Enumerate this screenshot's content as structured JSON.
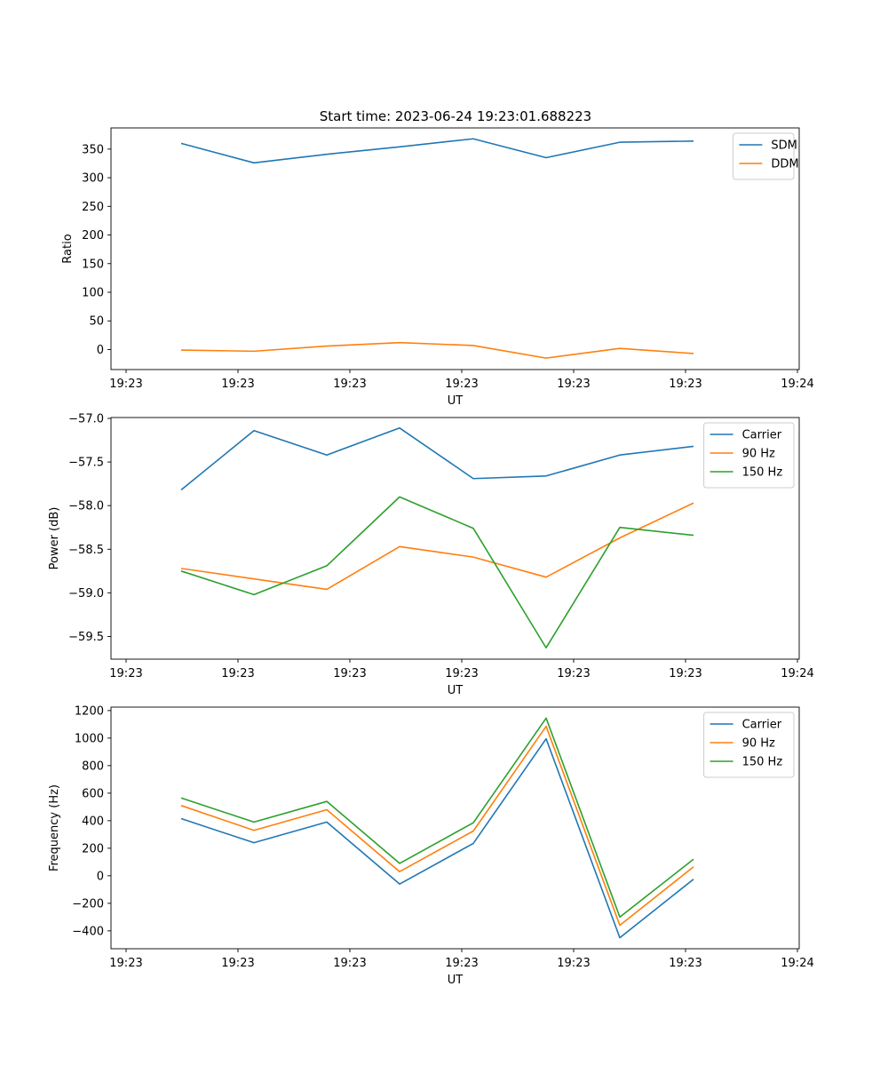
{
  "title": "Start time: 2023-06-24 19:23:01.688223",
  "chart_data": [
    {
      "type": "line",
      "xlabel": "UT",
      "ylabel": "Ratio",
      "x_tick_labels": [
        "19:23",
        "19:23",
        "19:23",
        "19:23",
        "19:23",
        "19:23",
        "19:24"
      ],
      "y_ticks": [
        0,
        50,
        100,
        150,
        200,
        250,
        300,
        350
      ],
      "y_tick_labels": [
        "0",
        "50",
        "100",
        "150",
        "200",
        "250",
        "300",
        "350"
      ],
      "ylim": [
        -35,
        387
      ],
      "legend_position": "top-right",
      "series": [
        {
          "name": "SDM",
          "color": "#1f77b4",
          "values": [
            360,
            326,
            341,
            354,
            368,
            335,
            362,
            364
          ]
        },
        {
          "name": "DDM",
          "color": "#ff7f0e",
          "values": [
            -1,
            -3,
            6,
            12,
            7,
            -15,
            2,
            -7
          ]
        }
      ]
    },
    {
      "type": "line",
      "xlabel": "UT",
      "ylabel": "Power (dB)",
      "x_tick_labels": [
        "19:23",
        "19:23",
        "19:23",
        "19:23",
        "19:23",
        "19:23",
        "19:24"
      ],
      "y_ticks": [
        -57.0,
        -57.5,
        -58.0,
        -58.5,
        -59.0,
        -59.5
      ],
      "y_tick_labels": [
        "−57.0",
        "−57.5",
        "−58.0",
        "−58.5",
        "−59.0",
        "−59.5"
      ],
      "ylim": [
        -59.76,
        -56.99
      ],
      "legend_position": "top-right",
      "series": [
        {
          "name": "Carrier",
          "color": "#1f77b4",
          "values": [
            -57.82,
            -57.14,
            -57.42,
            -57.11,
            -57.69,
            -57.66,
            -57.42,
            -57.32
          ]
        },
        {
          "name": "90 Hz",
          "color": "#ff7f0e",
          "values": [
            -58.72,
            -58.84,
            -58.96,
            -58.47,
            -58.59,
            -58.82,
            -58.37,
            -57.97
          ]
        },
        {
          "name": "150 Hz",
          "color": "#2ca02c",
          "values": [
            -58.75,
            -59.02,
            -58.69,
            -57.9,
            -58.26,
            -59.63,
            -58.25,
            -58.34
          ]
        }
      ]
    },
    {
      "type": "line",
      "xlabel": "UT",
      "ylabel": "Frequency (Hz)",
      "x_tick_labels": [
        "19:23",
        "19:23",
        "19:23",
        "19:23",
        "19:23",
        "19:23",
        "19:24"
      ],
      "y_ticks": [
        -400,
        -200,
        0,
        200,
        400,
        600,
        800,
        1000,
        1200
      ],
      "y_tick_labels": [
        "−400",
        "−200",
        "0",
        "200",
        "400",
        "600",
        "800",
        "1000",
        "1200"
      ],
      "ylim": [
        -530,
        1225
      ],
      "legend_position": "top-right",
      "series": [
        {
          "name": "Carrier",
          "color": "#1f77b4",
          "values": [
            415,
            240,
            390,
            -60,
            235,
            995,
            -450,
            -25
          ]
        },
        {
          "name": "90 Hz",
          "color": "#ff7f0e",
          "values": [
            510,
            330,
            480,
            30,
            325,
            1085,
            -360,
            65
          ]
        },
        {
          "name": "150 Hz",
          "color": "#2ca02c",
          "values": [
            565,
            390,
            540,
            90,
            385,
            1145,
            -300,
            120
          ]
        }
      ]
    }
  ]
}
